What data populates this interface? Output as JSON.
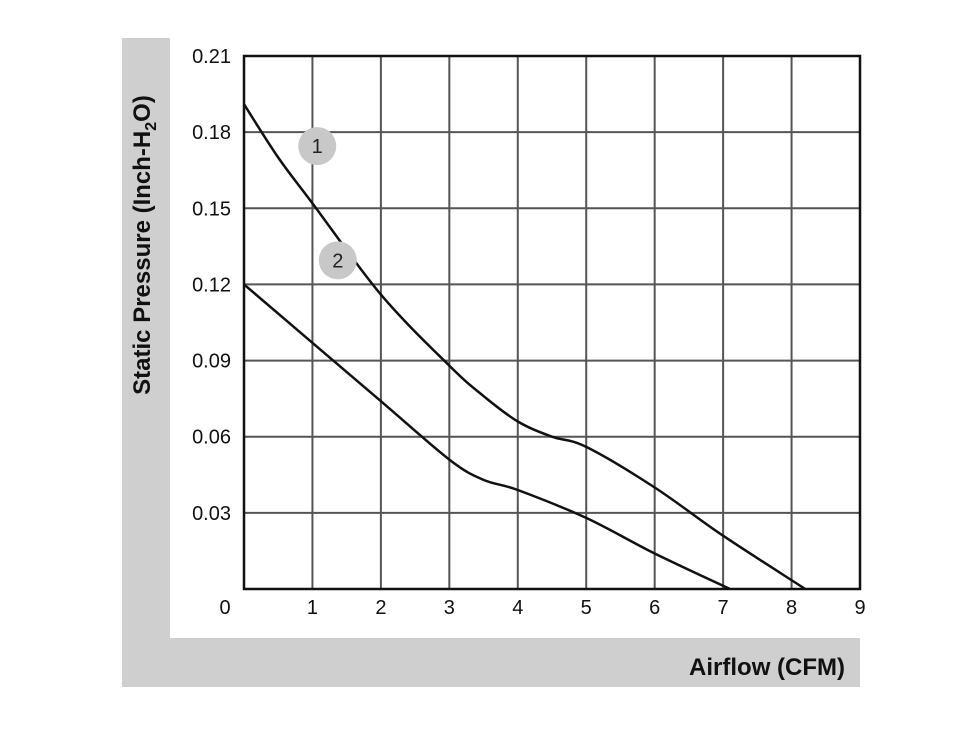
{
  "chart_data": {
    "type": "line",
    "xlabel": "Airflow (CFM)",
    "ylabel": {
      "prefix": "Static Pressure (Inch-H",
      "subscript": "2",
      "suffix": "O)"
    },
    "xlim": [
      0,
      9
    ],
    "ylim": [
      0,
      0.21
    ],
    "x_ticks": [
      "0",
      "1",
      "2",
      "3",
      "4",
      "5",
      "6",
      "7",
      "8",
      "9"
    ],
    "y_ticks": [
      "0.21",
      "0.18",
      "0.15",
      "0.12",
      "0.09",
      "0.06",
      "0.03"
    ],
    "grid": true,
    "series": [
      {
        "name": "1",
        "points": [
          [
            0,
            0.191
          ],
          [
            0.5,
            0.17
          ],
          [
            1,
            0.152
          ],
          [
            2,
            0.116
          ],
          [
            3,
            0.088
          ],
          [
            3.5,
            0.076
          ],
          [
            4,
            0.066
          ],
          [
            4.5,
            0.06
          ],
          [
            5,
            0.056
          ],
          [
            6,
            0.04
          ],
          [
            7,
            0.021
          ],
          [
            8.2,
            0
          ]
        ]
      },
      {
        "name": "2",
        "points": [
          [
            0,
            0.12
          ],
          [
            1,
            0.097
          ],
          [
            2,
            0.074
          ],
          [
            3,
            0.051
          ],
          [
            3.5,
            0.043
          ],
          [
            4,
            0.039
          ],
          [
            5,
            0.028
          ],
          [
            6,
            0.014
          ],
          [
            7.1,
            0
          ]
        ]
      }
    ],
    "series_colors": [
      "#111111",
      "#111111"
    ],
    "badge_color": "#c8c8c8",
    "panel_color": "#cfcfcf"
  }
}
